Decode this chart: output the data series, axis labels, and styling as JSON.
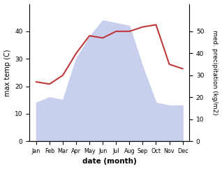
{
  "months": [
    "Jan",
    "Feb",
    "Mar",
    "Apr",
    "May",
    "Jun",
    "Jul",
    "Aug",
    "Sep",
    "Oct",
    "Nov",
    "Dec"
  ],
  "max_temp": [
    14,
    16,
    15,
    30,
    38,
    44,
    43,
    42,
    27,
    14,
    13,
    13
  ],
  "precipitation": [
    27,
    26,
    30,
    40,
    48,
    47,
    50,
    50,
    52,
    53,
    35,
    33
  ],
  "temp_color": "#c8d0ee",
  "precip_color": "#c0393b",
  "ylabel_left": "max temp (C)",
  "ylabel_right": "med. precipitation (kg/m2)",
  "xlabel": "date (month)",
  "ylim_left": [
    0,
    50
  ],
  "ylim_right": [
    0,
    62.5
  ],
  "left_ticks": [
    0,
    10,
    20,
    30,
    40
  ],
  "right_ticks": [
    0,
    10,
    20,
    30,
    40,
    50
  ],
  "fig_width": 3.18,
  "fig_height": 2.42,
  "dpi": 100
}
